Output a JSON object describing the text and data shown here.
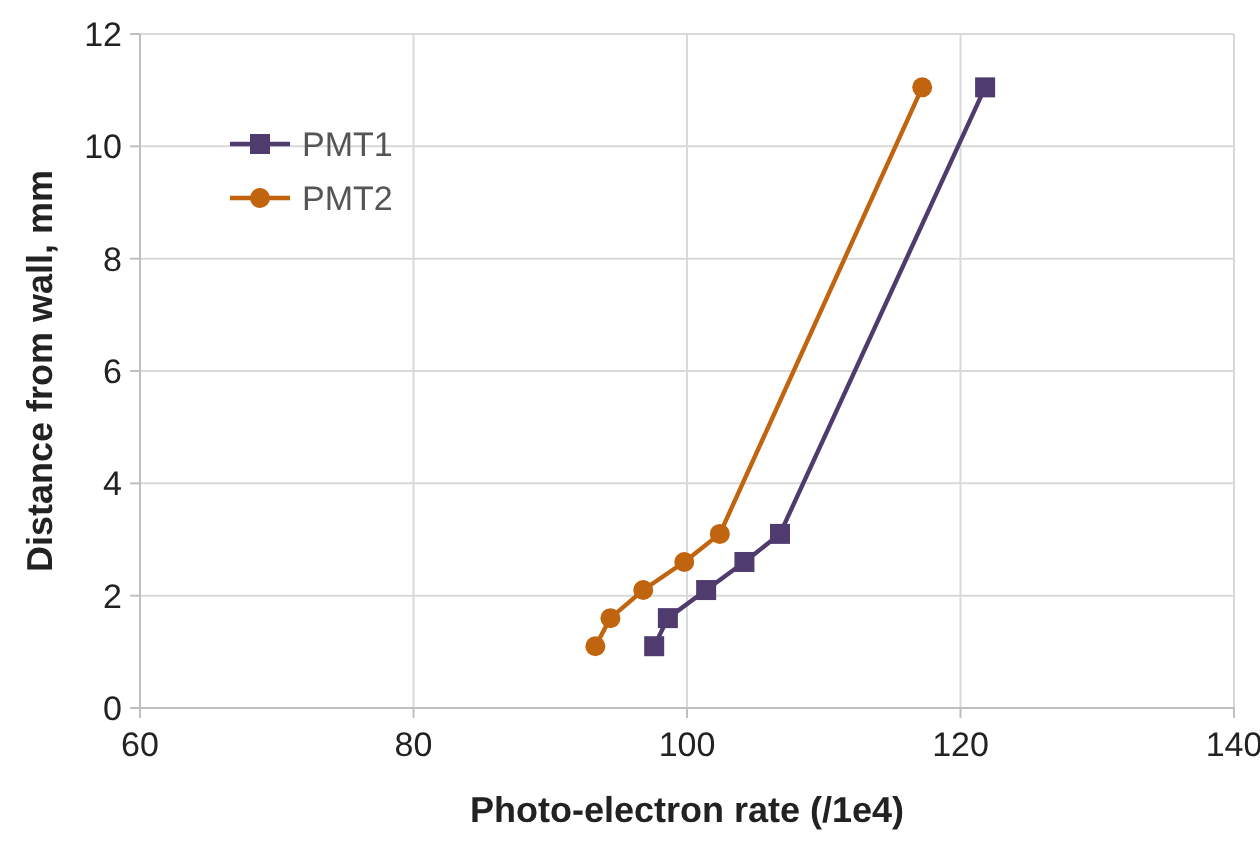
{
  "chart_data": {
    "type": "line",
    "xlabel": "Photo-electron rate (/1e4)",
    "ylabel": "Distance from wall, mm",
    "xlim": [
      60,
      140
    ],
    "xticks": [
      60,
      80,
      100,
      120,
      140
    ],
    "ylim": [
      0,
      12
    ],
    "yticks": [
      0,
      2,
      4,
      6,
      8,
      10,
      12
    ],
    "grid": true,
    "legend": "top left",
    "series": [
      {
        "name": "PMT1",
        "color": "#4f3b6e",
        "marker": "square",
        "x": [
          97.6,
          98.6,
          101.4,
          104.2,
          106.8,
          121.8
        ],
        "values": [
          1.1,
          1.6,
          2.1,
          2.6,
          3.1,
          11.05
        ]
      },
      {
        "name": "PMT2",
        "color": "#c0640f",
        "marker": "circle",
        "x": [
          93.3,
          94.4,
          96.8,
          99.8,
          102.4,
          117.2
        ],
        "values": [
          1.1,
          1.6,
          2.1,
          2.6,
          3.1,
          11.05
        ]
      }
    ]
  }
}
